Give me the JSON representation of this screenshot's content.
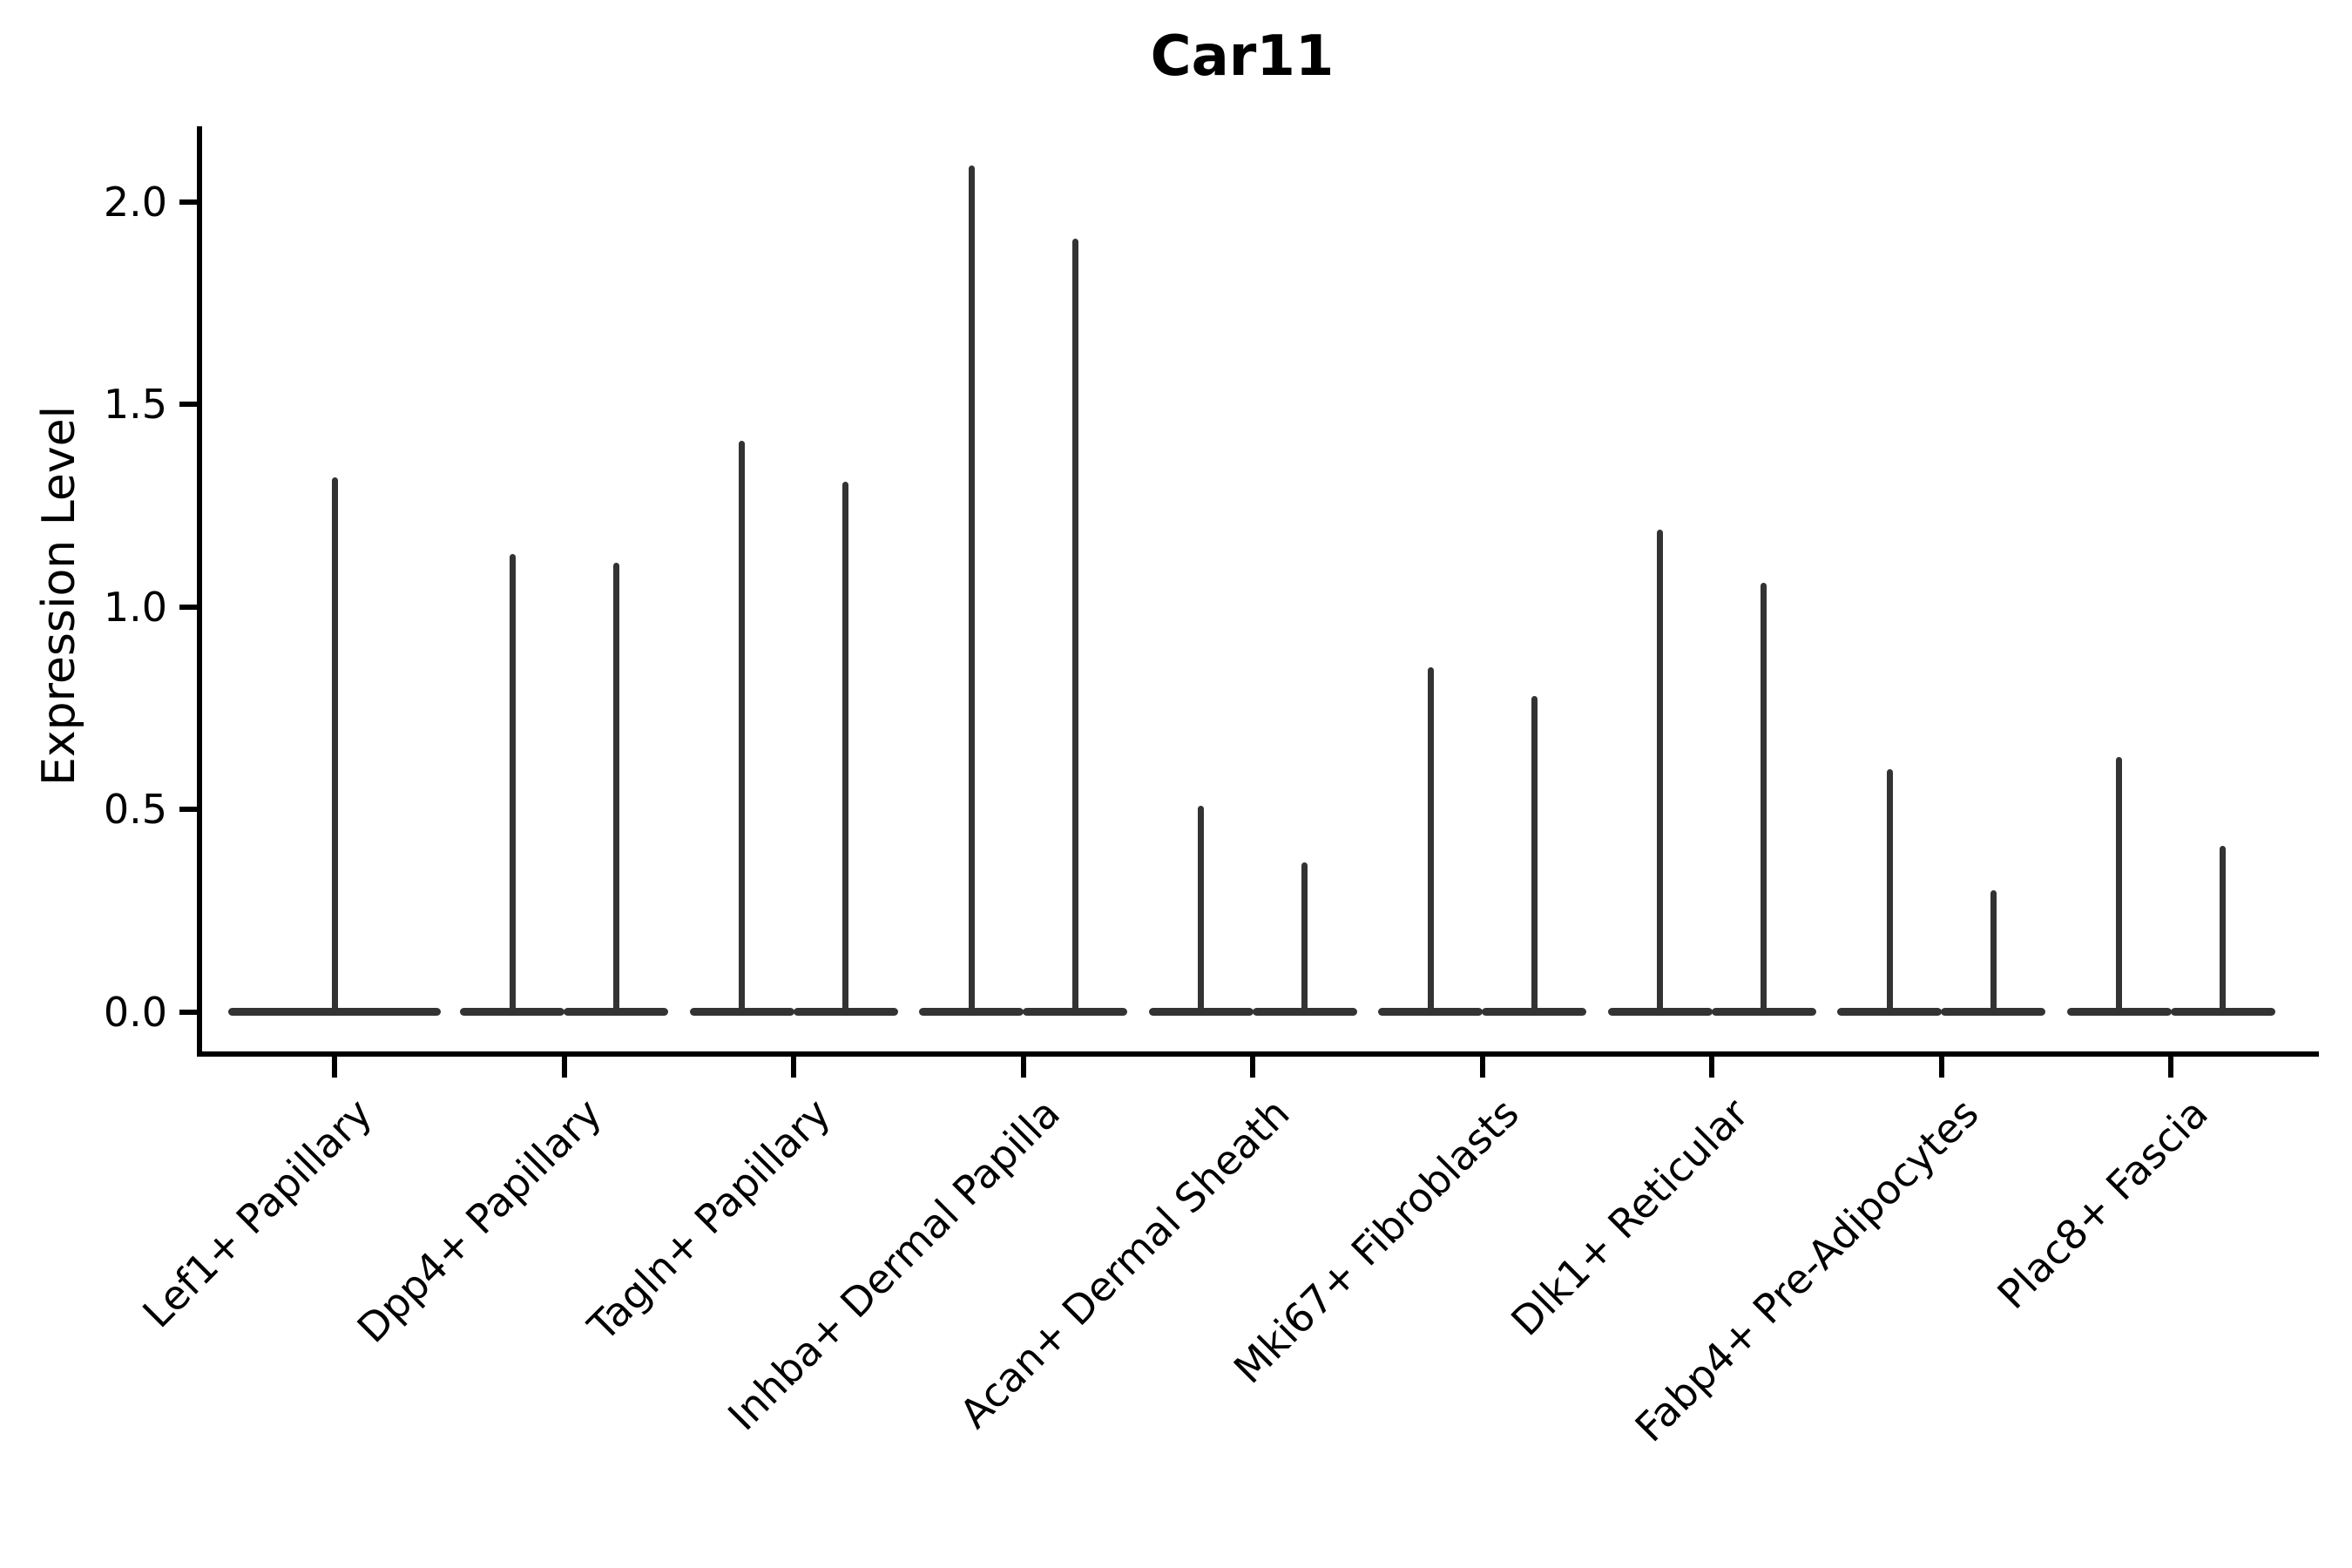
{
  "chart_data": {
    "type": "violin",
    "title": "Car11",
    "ylabel": "Expression Level",
    "xlabel": "",
    "legend": "none",
    "grid": false,
    "background": "#ffffff",
    "colors": {
      "violin": "#333333",
      "axis": "#000000",
      "text": "#000000"
    },
    "yticks": [
      0.0,
      0.5,
      1.0,
      1.5,
      2.0
    ],
    "ylim": [
      -0.104,
      2.18
    ],
    "baseline_value": 0.0,
    "categories": [
      "Lef1+ Papillary",
      "Dpp4+ Papillary",
      "Tagln+ Papillary",
      "Inhba+ Dermal Papilla",
      "Acan+ Dermal Sheath",
      "Mki67+ Fibroblasts",
      "Dlk1+ Reticular",
      "Fabp4+ Pre-Adipocytes",
      "Plac8+ Fascia"
    ],
    "violins": [
      {
        "category": "Lef1+ Papillary",
        "maxima": [
          1.32
        ]
      },
      {
        "category": "Dpp4+ Papillary",
        "maxima": [
          1.13,
          1.11
        ]
      },
      {
        "category": "Tagln+ Papillary",
        "maxima": [
          1.41,
          1.31
        ]
      },
      {
        "category": "Inhba+ Dermal Papilla",
        "maxima": [
          2.09,
          1.91
        ]
      },
      {
        "category": "Acan+ Dermal Sheath",
        "maxima": [
          0.51,
          0.37
        ]
      },
      {
        "category": "Mki67+ Fibroblasts",
        "maxima": [
          0.85,
          0.78
        ]
      },
      {
        "category": "Dlk1+ Reticular",
        "maxima": [
          1.19,
          1.06
        ]
      },
      {
        "category": "Fabp4+ Pre-Adipocytes",
        "maxima": [
          0.6,
          0.3
        ]
      },
      {
        "category": "Plac8+ Fascia",
        "maxima": [
          0.63,
          0.41
        ]
      }
    ]
  }
}
